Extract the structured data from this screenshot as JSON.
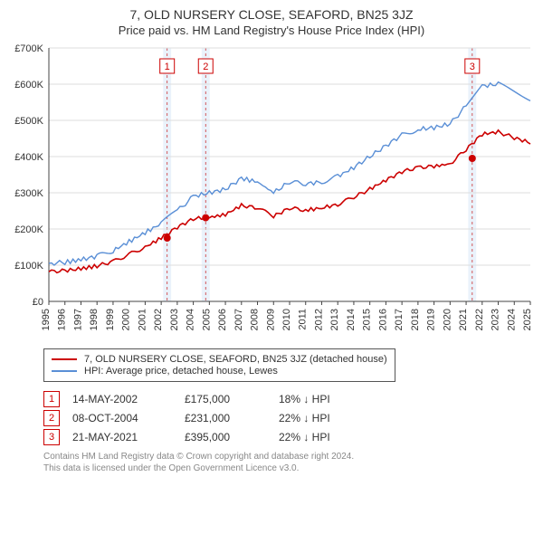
{
  "header": {
    "title": "7, OLD NURSERY CLOSE, SEAFORD, BN25 3JZ",
    "subtitle": "Price paid vs. HM Land Registry's House Price Index (HPI)"
  },
  "chart": {
    "type": "line",
    "background_color": "#ffffff",
    "grid_color": "#dddddd",
    "axis_color": "#444444",
    "label_fontsize": 11,
    "tick_fontsize": 11,
    "y_axis": {
      "min": 0,
      "max": 700000,
      "step": 100000,
      "tick_labels": [
        "£0",
        "£100K",
        "£200K",
        "£300K",
        "£400K",
        "£500K",
        "£600K",
        "£700K"
      ]
    },
    "x_axis": {
      "years": [
        1995,
        1996,
        1997,
        1998,
        1999,
        2000,
        2001,
        2002,
        2003,
        2004,
        2005,
        2006,
        2007,
        2008,
        2009,
        2010,
        2011,
        2012,
        2013,
        2014,
        2015,
        2016,
        2017,
        2018,
        2019,
        2020,
        2021,
        2022,
        2023,
        2024,
        2025
      ]
    },
    "bands": [
      {
        "year": 2002.37,
        "width_years": 0.5,
        "fill": "#eaf2fb",
        "dash_color": "#cc3333"
      },
      {
        "year": 2004.77,
        "width_years": 0.5,
        "fill": "#eaf2fb",
        "dash_color": "#cc3333"
      },
      {
        "year": 2021.38,
        "width_years": 0.5,
        "fill": "#eaf2fb",
        "dash_color": "#cc3333"
      }
    ],
    "markers": [
      {
        "n": "1",
        "year": 2002.37,
        "y_box": 650000,
        "badge_border": "#cc0000",
        "badge_text_color": "#cc0000"
      },
      {
        "n": "2",
        "year": 2004.77,
        "y_box": 650000,
        "badge_border": "#cc0000",
        "badge_text_color": "#cc0000"
      },
      {
        "n": "3",
        "year": 2021.38,
        "y_box": 650000,
        "badge_border": "#cc0000",
        "badge_text_color": "#cc0000"
      }
    ],
    "series": [
      {
        "name": "hpi",
        "color": "#5a8fd6",
        "line_width": 1.4,
        "points": [
          [
            1995,
            105000
          ],
          [
            1996,
            108000
          ],
          [
            1997,
            115000
          ],
          [
            1998,
            125000
          ],
          [
            1999,
            140000
          ],
          [
            2000,
            165000
          ],
          [
            2001,
            190000
          ],
          [
            2002,
            215000
          ],
          [
            2003,
            250000
          ],
          [
            2004,
            290000
          ],
          [
            2005,
            300000
          ],
          [
            2006,
            310000
          ],
          [
            2007,
            340000
          ],
          [
            2008,
            330000
          ],
          [
            2009,
            300000
          ],
          [
            2010,
            330000
          ],
          [
            2011,
            325000
          ],
          [
            2012,
            330000
          ],
          [
            2013,
            345000
          ],
          [
            2014,
            370000
          ],
          [
            2015,
            400000
          ],
          [
            2016,
            430000
          ],
          [
            2017,
            460000
          ],
          [
            2018,
            475000
          ],
          [
            2019,
            480000
          ],
          [
            2020,
            490000
          ],
          [
            2021,
            540000
          ],
          [
            2022,
            595000
          ],
          [
            2023,
            600000
          ],
          [
            2024,
            580000
          ],
          [
            2025,
            560000
          ]
        ]
      },
      {
        "name": "property",
        "color": "#cc0000",
        "line_width": 1.6,
        "points": [
          [
            1995,
            82000
          ],
          [
            1996,
            85000
          ],
          [
            1997,
            90000
          ],
          [
            1998,
            98000
          ],
          [
            1999,
            110000
          ],
          [
            2000,
            130000
          ],
          [
            2001,
            150000
          ],
          [
            2002,
            175000
          ],
          [
            2003,
            205000
          ],
          [
            2004,
            228000
          ],
          [
            2005,
            232000
          ],
          [
            2006,
            240000
          ],
          [
            2007,
            265000
          ],
          [
            2008,
            258000
          ],
          [
            2009,
            235000
          ],
          [
            2010,
            258000
          ],
          [
            2011,
            252000
          ],
          [
            2012,
            258000
          ],
          [
            2013,
            268000
          ],
          [
            2014,
            288000
          ],
          [
            2015,
            310000
          ],
          [
            2016,
            335000
          ],
          [
            2017,
            358000
          ],
          [
            2018,
            370000
          ],
          [
            2019,
            373000
          ],
          [
            2020,
            380000
          ],
          [
            2021,
            420000
          ],
          [
            2022,
            462000
          ],
          [
            2023,
            468000
          ],
          [
            2024,
            452000
          ],
          [
            2025,
            438000
          ]
        ]
      }
    ],
    "dots": [
      {
        "year": 2002.37,
        "value": 175000,
        "color": "#cc0000",
        "r": 4
      },
      {
        "year": 2004.77,
        "value": 231000,
        "color": "#cc0000",
        "r": 4
      },
      {
        "year": 2021.38,
        "value": 395000,
        "color": "#cc0000",
        "r": 4
      }
    ]
  },
  "legend": {
    "rows": [
      {
        "color": "#cc0000",
        "label": "7, OLD NURSERY CLOSE, SEAFORD, BN25 3JZ (detached house)"
      },
      {
        "color": "#5a8fd6",
        "label": "HPI: Average price, detached house, Lewes"
      }
    ]
  },
  "transactions": [
    {
      "n": "1",
      "date": "14-MAY-2002",
      "price": "£175,000",
      "delta": "18% ↓ HPI"
    },
    {
      "n": "2",
      "date": "08-OCT-2004",
      "price": "£231,000",
      "delta": "22% ↓ HPI"
    },
    {
      "n": "3",
      "date": "21-MAY-2021",
      "price": "£395,000",
      "delta": "22% ↓ HPI"
    }
  ],
  "footer": {
    "line1": "Contains HM Land Registry data © Crown copyright and database right 2024.",
    "line2": "This data is licensed under the Open Government Licence v3.0."
  },
  "colors": {
    "badge_border": "#cc0000",
    "badge_text": "#cc0000"
  }
}
